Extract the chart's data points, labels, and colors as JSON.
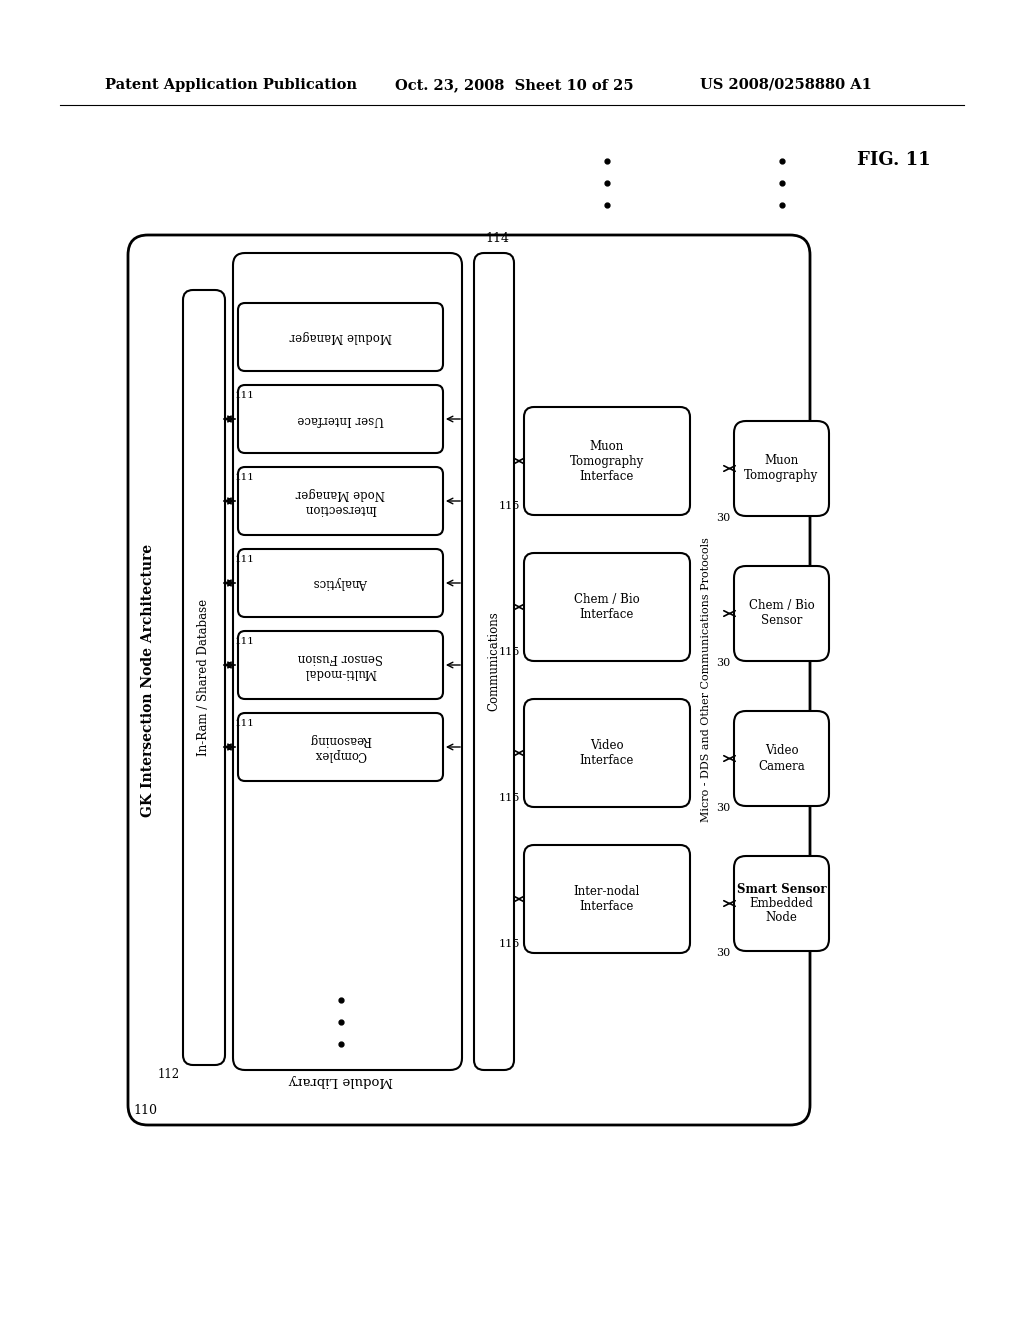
{
  "bg_color": "#ffffff",
  "header_left": "Patent Application Publication",
  "header_center": "Oct. 23, 2008  Sheet 10 of 25",
  "header_right": "US 2008/0258880 A1",
  "fig_label": "FIG. 11",
  "outer_label": "GK Intersection Node Architecture",
  "outer_num": "110",
  "db_label": "In-Ram / Shared Database",
  "db_num": "112",
  "mod_lib_label": "Module Library",
  "modules": [
    "Module Manager",
    "User Interface",
    "Intersection\nNode Manager",
    "Analytics",
    "Multi-modal\nSensor Fusion",
    "Complex\nReasoning"
  ],
  "mod_num": "111",
  "comm_label": "Communications",
  "comm_num": "114",
  "interfaces": [
    "Inter-nodal\nInterface",
    "Video\nInterface",
    "Chem / Bio\nInterface",
    "Muon\nTomography\nInterface"
  ],
  "intf_num": "115",
  "protocol_label": "Micro - DDS and Other Communications Protocols",
  "sensors": [
    "Smart Sensor\nEmbedded\nNode",
    "Video\nCamera",
    "Chem / Bio\nSensor",
    "Muon\nTomography"
  ],
  "sensor_num": "30"
}
